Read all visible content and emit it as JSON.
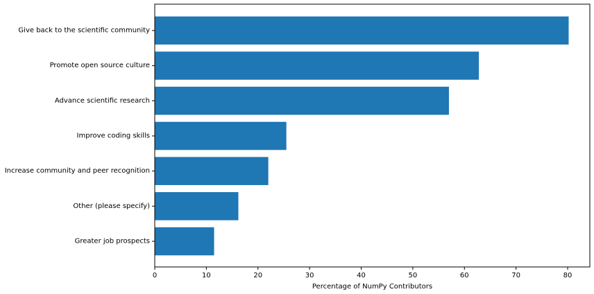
{
  "chart_data": {
    "type": "bar",
    "orientation": "horizontal",
    "title": "",
    "xlabel": "Percentage of NumPy Contributors",
    "ylabel": "",
    "categories": [
      "Give back to the scientific community",
      "Promote open source culture",
      "Advance scientific research",
      "Improve coding skills",
      "Increase community and peer recognition",
      "Other (please specify)",
      "Greater job prospects"
    ],
    "values": [
      80.2,
      62.8,
      57.0,
      25.5,
      22.0,
      16.2,
      11.5
    ],
    "xlim": [
      0,
      84.3
    ],
    "xticks": [
      0,
      10,
      20,
      30,
      40,
      50,
      60,
      70,
      80
    ],
    "bar_color": "#1f77b4",
    "grid": false,
    "legend": "none"
  }
}
